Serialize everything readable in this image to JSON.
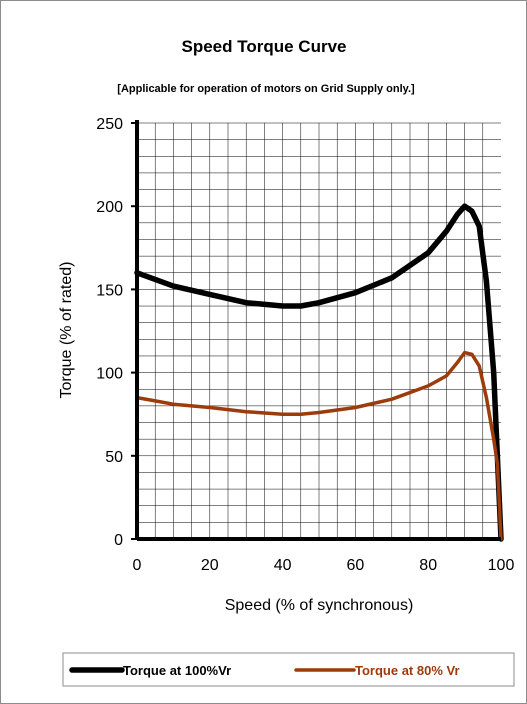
{
  "chart_data": {
    "type": "line",
    "title": "Speed Torque Curve",
    "subtitle": "[Applicable for operation of motors on Grid Supply only.]",
    "xlabel": "Speed (% of synchronous)",
    "ylabel": "Torque (% of rated)",
    "xlim": [
      0,
      100
    ],
    "ylim": [
      0,
      250
    ],
    "xticks": [
      "0",
      "20",
      "40",
      "60",
      "80",
      "100"
    ],
    "yticks": [
      "0",
      "50",
      "100",
      "150",
      "200",
      "250"
    ],
    "grid": true,
    "legend_position": "bottom",
    "series": [
      {
        "name": "Torque at 100%Vr",
        "color": "#000000",
        "x": [
          0,
          5,
          10,
          20,
          30,
          40,
          45,
          50,
          60,
          70,
          80,
          85,
          88,
          90,
          92,
          94,
          96,
          98,
          100
        ],
        "y": [
          160,
          156,
          152,
          147,
          142,
          140,
          140,
          142,
          148,
          157,
          172,
          185,
          195,
          200,
          197,
          188,
          155,
          100,
          0
        ]
      },
      {
        "name": "Torque at 80% Vr",
        "color": "#9c3b0b",
        "x": [
          0,
          5,
          10,
          20,
          30,
          40,
          45,
          50,
          60,
          70,
          80,
          85,
          88,
          90,
          92,
          94,
          96,
          98,
          99,
          100
        ],
        "y": [
          85,
          83,
          81,
          79,
          76.5,
          75,
          75,
          76,
          79,
          84,
          92,
          98,
          106,
          112,
          111,
          104,
          85,
          60,
          45,
          0
        ]
      }
    ]
  }
}
